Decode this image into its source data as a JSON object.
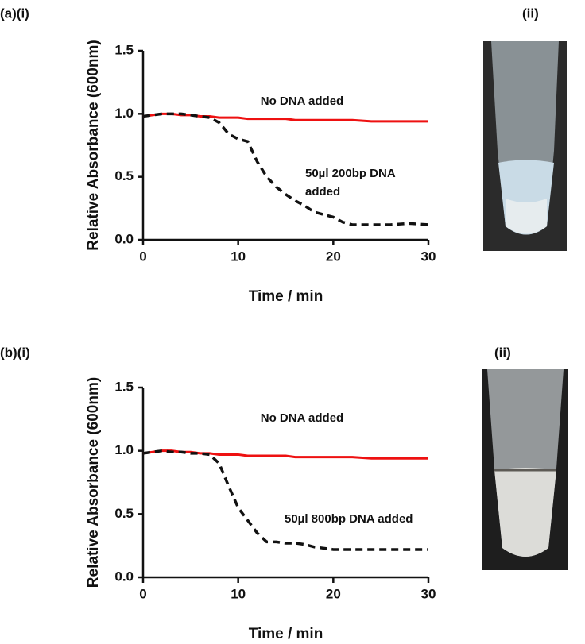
{
  "chart_data": [
    {
      "type": "line",
      "panel_label": "(a)(i)",
      "photo_label": "(ii)",
      "x_label": "Time / min",
      "y_label": "Relative Absorbance (600nm)",
      "x": [
        0,
        1,
        2,
        3,
        4,
        5,
        6,
        7,
        8,
        9,
        10,
        11,
        12,
        13,
        14,
        15,
        16,
        17,
        18,
        19,
        20,
        21,
        22,
        24,
        26,
        28,
        30
      ],
      "series": [
        {
          "name": "No DNA added",
          "color": "#ee1111",
          "line_style": "solid",
          "values": [
            0.98,
            0.99,
            1.0,
            1.0,
            0.99,
            0.99,
            0.98,
            0.98,
            0.97,
            0.97,
            0.97,
            0.96,
            0.96,
            0.96,
            0.96,
            0.96,
            0.95,
            0.95,
            0.95,
            0.95,
            0.95,
            0.95,
            0.95,
            0.94,
            0.94,
            0.94,
            0.94
          ]
        },
        {
          "name": "50µl 200bp DNA added",
          "color": "#111111",
          "line_style": "dashed",
          "values": [
            0.98,
            0.99,
            1.0,
            1.0,
            1.0,
            0.99,
            0.98,
            0.97,
            0.93,
            0.84,
            0.8,
            0.78,
            0.62,
            0.5,
            0.42,
            0.36,
            0.31,
            0.27,
            0.22,
            0.2,
            0.18,
            0.14,
            0.12,
            0.12,
            0.12,
            0.13,
            0.12
          ]
        }
      ],
      "xlim": [
        0,
        30
      ],
      "xticks": [
        0,
        10,
        20,
        30
      ],
      "ylim": [
        0,
        1.5
      ],
      "yticks": [
        {
          "value": 0,
          "label": "0.0"
        },
        0.5,
        {
          "value": 1,
          "label": "1.0"
        },
        1.5
      ]
    },
    {
      "type": "line",
      "panel_label": "(b)(i)",
      "photo_label": "(ii)",
      "x_label": "Time / min",
      "y_label": "Relative Absorbance (600nm)",
      "x": [
        0,
        1,
        2,
        3,
        4,
        5,
        6,
        7,
        8,
        9,
        10,
        11,
        12,
        13,
        14,
        15,
        16,
        17,
        18,
        19,
        20,
        21,
        22,
        24,
        26,
        28,
        30
      ],
      "series": [
        {
          "name": "No DNA added",
          "color": "#ee1111",
          "line_style": "solid",
          "values": [
            0.98,
            0.99,
            1.0,
            1.0,
            0.99,
            0.99,
            0.98,
            0.98,
            0.97,
            0.97,
            0.97,
            0.96,
            0.96,
            0.96,
            0.96,
            0.96,
            0.95,
            0.95,
            0.95,
            0.95,
            0.95,
            0.95,
            0.95,
            0.94,
            0.94,
            0.94,
            0.94
          ]
        },
        {
          "name": "50µl 800bp DNA added",
          "color": "#111111",
          "line_style": "dashed",
          "values": [
            0.98,
            0.99,
            1.0,
            0.99,
            0.99,
            0.98,
            0.98,
            0.97,
            0.9,
            0.72,
            0.55,
            0.45,
            0.35,
            0.28,
            0.28,
            0.27,
            0.27,
            0.26,
            0.24,
            0.23,
            0.22,
            0.22,
            0.22,
            0.22,
            0.22,
            0.22,
            0.22
          ]
        }
      ],
      "xlim": [
        0,
        30
      ],
      "xticks": [
        0,
        10,
        20,
        30
      ],
      "ylim": [
        0,
        1.5
      ],
      "yticks": [
        {
          "value": 0,
          "label": "0.0"
        },
        0.5,
        {
          "value": 1,
          "label": "1.0"
        },
        1.5
      ]
    }
  ]
}
